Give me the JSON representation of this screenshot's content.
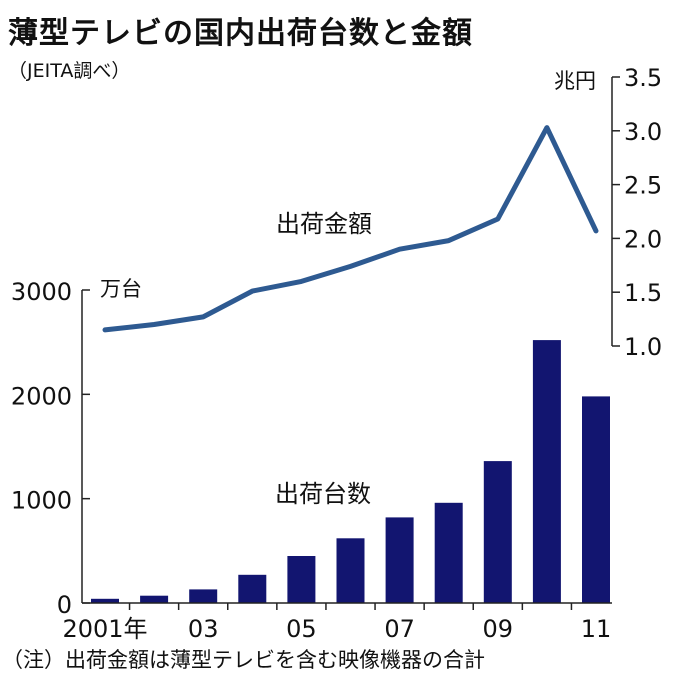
{
  "title": "薄型テレビの国内出荷台数と金額",
  "source": "（JEITA調べ）",
  "note": "（注）出荷金額は薄型テレビを含む映像機器の合計",
  "colors": {
    "bar": "#121570",
    "line": "#2e5a91",
    "axis": "#222222"
  },
  "chart_data": {
    "type": "bar+line",
    "categories": [
      "2001",
      "2002",
      "2003",
      "2004",
      "2005",
      "2006",
      "2007",
      "2008",
      "2009",
      "2010",
      "2011"
    ],
    "x_tick_labels": [
      "2001年",
      "",
      "03",
      "",
      "05",
      "",
      "07",
      "",
      "09",
      "",
      "11"
    ],
    "bars": {
      "name": "出荷台数",
      "unit": "万台",
      "values": [
        40,
        70,
        130,
        270,
        450,
        620,
        820,
        960,
        1360,
        2520,
        1980
      ],
      "ylim": [
        0,
        3000
      ],
      "ticks": [
        0,
        1000,
        2000,
        3000
      ],
      "tick_labels": [
        "0",
        "1000",
        "2000",
        "3000"
      ]
    },
    "line": {
      "name": "出荷金額",
      "unit": "兆円",
      "values": [
        1.15,
        1.2,
        1.27,
        1.51,
        1.6,
        1.74,
        1.9,
        1.98,
        2.18,
        3.03,
        2.07
      ],
      "ylim": [
        1.0,
        3.5
      ],
      "ticks": [
        1.0,
        1.5,
        2.0,
        2.5,
        3.0,
        3.5
      ],
      "tick_labels": [
        "1.0",
        "1.5",
        "2.0",
        "2.5",
        "3.0",
        "3.5"
      ]
    },
    "grid": false
  }
}
